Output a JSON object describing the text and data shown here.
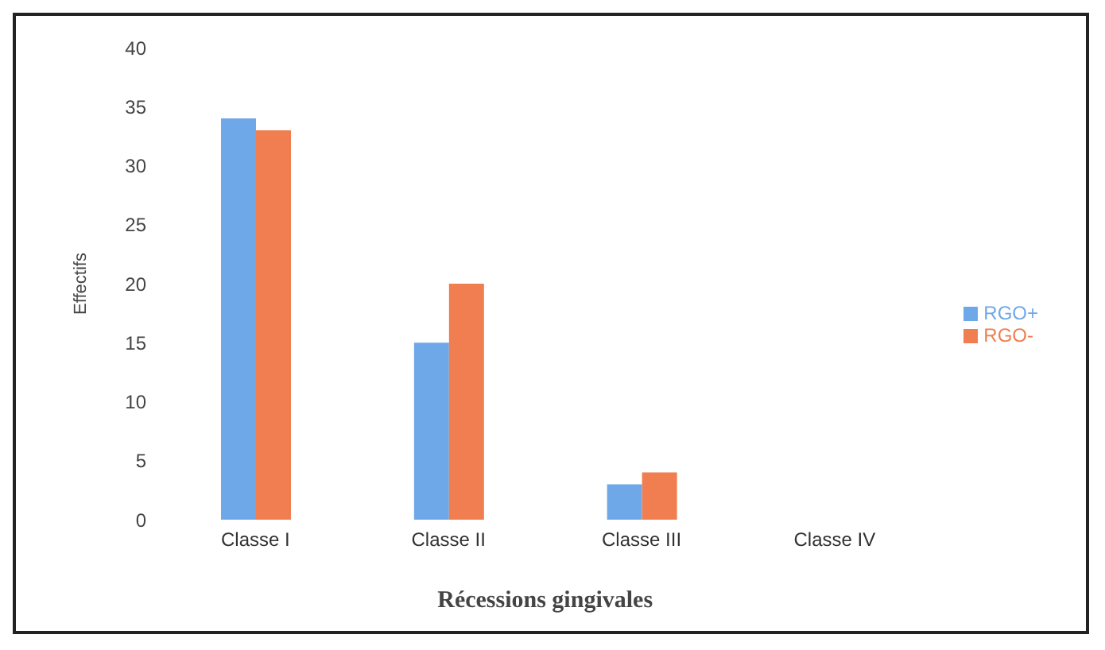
{
  "chart_data": {
    "type": "bar",
    "xlabel": "Récessions gingivales",
    "ylabel": "Effectifs",
    "categories": [
      "Classe I",
      "Classe II",
      "Classe III",
      "Classe IV"
    ],
    "series": [
      {
        "name": "RGO+",
        "color": "#6fa8e8",
        "values": [
          34,
          15,
          3,
          0
        ]
      },
      {
        "name": "RGO-",
        "color": "#f07e50",
        "values": [
          33,
          20,
          4,
          0
        ]
      }
    ],
    "ylim": [
      0,
      40
    ],
    "yticks": [
      0,
      5,
      10,
      15,
      20,
      25,
      30,
      35,
      40
    ],
    "grid": false,
    "legend": "right"
  }
}
